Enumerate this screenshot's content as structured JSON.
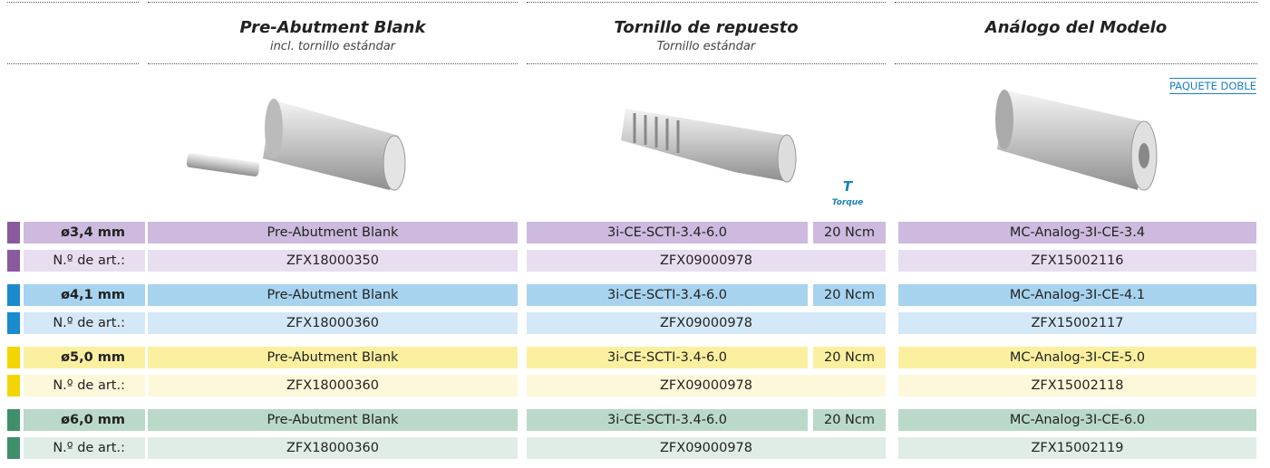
{
  "header": {
    "columns": [
      {
        "title": "Pre-Abutment Blank",
        "subtitle": "incl. tornillo estándar"
      },
      {
        "title": "Tornillo de repuesto",
        "subtitle": "Tornillo estándar"
      },
      {
        "title": "Análogo del Modelo"
      }
    ]
  },
  "badge": "PAQUETE DOBLE",
  "torque": {
    "symbol": "T",
    "label": "Torque"
  },
  "table": {
    "rows": [
      {
        "diameter": "ø3,4 mm",
        "abutment": "Pre-Abutment Blank",
        "screw": "3i-CE-SCTI-3.4-6.0",
        "torque": "20 Ncm",
        "analog": "MC-Analog-3I-CE-3.4",
        "article_label": "N.º de art.:",
        "abutment_art": "ZFX18000350",
        "screw_art": "ZFX09000978",
        "analog_art": "ZFX15002116"
      },
      {
        "diameter": "ø4,1 mm",
        "abutment": "Pre-Abutment Blank",
        "screw": "3i-CE-SCTI-3.4-6.0",
        "torque": "20 Ncm",
        "analog": "MC-Analog-3I-CE-4.1",
        "article_label": "N.º de art.:",
        "abutment_art": "ZFX18000360",
        "screw_art": "ZFX09000978",
        "analog_art": "ZFX15002117"
      },
      {
        "diameter": "ø5,0 mm",
        "abutment": "Pre-Abutment Blank",
        "screw": "3i-CE-SCTI-3.4-6.0",
        "torque": "20 Ncm",
        "analog": "MC-Analog-3I-CE-5.0",
        "article_label": "N.º de art.:",
        "abutment_art": "ZFX18000360",
        "screw_art": "ZFX09000978",
        "analog_art": "ZFX15002118"
      },
      {
        "diameter": "ø6,0 mm",
        "abutment": "Pre-Abutment Blank",
        "screw": "3i-CE-SCTI-3.4-6.0",
        "torque": "20 Ncm",
        "analog": "MC-Analog-3I-CE-6.0",
        "article_label": "N.º de art.:",
        "abutment_art": "ZFX18000360",
        "screw_art": "ZFX09000978",
        "analog_art": "ZFX15002119"
      }
    ]
  }
}
